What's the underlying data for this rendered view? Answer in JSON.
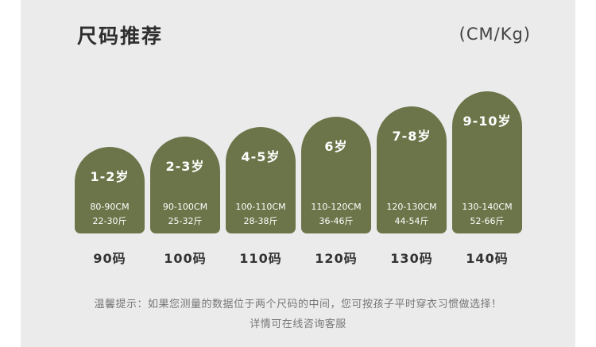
{
  "header": {
    "title": "尺码推荐",
    "unit": "(CM/Kg)"
  },
  "sizes": [
    {
      "age": "1-2岁",
      "height": "80-90CM",
      "weight": "22-30斤",
      "label": "90码"
    },
    {
      "age": "2-3岁",
      "height": "90-100CM",
      "weight": "25-32斤",
      "label": "100码"
    },
    {
      "age": "4-5岁",
      "height": "100-110CM",
      "weight": "28-38斤",
      "label": "110码"
    },
    {
      "age": "6岁",
      "height": "110-120CM",
      "weight": "36-46斤",
      "label": "120码"
    },
    {
      "age": "7-8岁",
      "height": "120-130CM",
      "weight": "44-54斤",
      "label": "130码"
    },
    {
      "age": "9-10岁",
      "height": "130-140CM",
      "weight": "52-66斤",
      "label": "140码"
    }
  ],
  "footer": {
    "tip": "温馨提示：如果您测量的数据位于两个尺码的中间，您可按孩子平时穿衣习惯做选择！",
    "contact": "详情可在线咨询客服"
  },
  "colors": {
    "card": "#6b7549",
    "background": "#ebebeb"
  }
}
